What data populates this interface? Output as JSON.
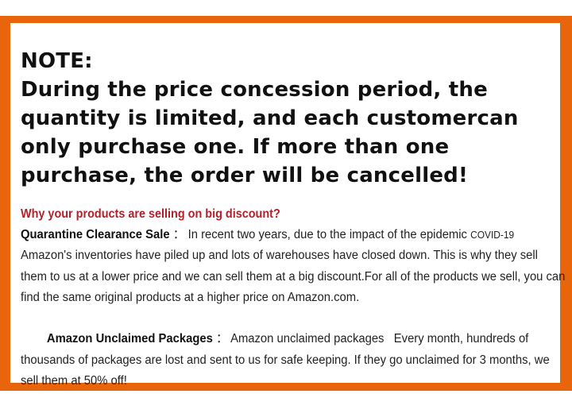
{
  "colors": {
    "frame": "#e8650c",
    "heading": "#b3202a"
  },
  "note": {
    "title": "NOTE:",
    "text": "During the price concession period, the quantity is limited, and each customercan only purchase one. If more than one purchase, the order will be cancelled!"
  },
  "why": "Why your products are selling on big discount?",
  "quarantine": {
    "label": "Quarantine Clearance Sale",
    "sep": " ： ",
    "text": "In recent two years, due to the impact of the epidemic ",
    "covid": "COVID-19",
    "text2": " Amazon's inventories have piled up and lots of warehouses have closed down. This is why they sell them to us at a lower price and we can sell them at a big discount.For all of the products we sell, you can find the same original products at a higher price on Amazon.com."
  },
  "unclaimed": {
    "label": "Amazon Unclaimed Packages",
    "sep": " ： ",
    "text": "Amazon unclaimed packages   Every month, hundreds of thousands of packages are lost and sent to us for safe keeping. If they go unclaimed for 3 months, we sell them at 50% off!"
  }
}
